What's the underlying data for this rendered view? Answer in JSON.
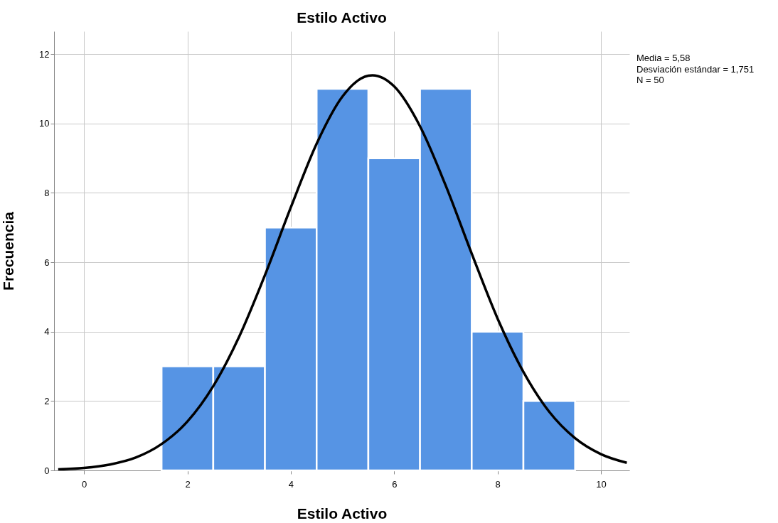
{
  "chart_data": {
    "type": "histogram",
    "title": "Estilo Activo",
    "xlabel": "Estilo Activo",
    "ylabel": "Frecuencia",
    "xlim": [
      -0.58,
      10.55
    ],
    "ylim": [
      0,
      12.66
    ],
    "xticks": [
      0,
      2,
      4,
      6,
      8,
      10
    ],
    "yticks": [
      0,
      2,
      4,
      6,
      8,
      10,
      12
    ],
    "grid": true,
    "annotations": [
      "Media = 5,58",
      "Desviación estándar = 1,751",
      "N = 50"
    ],
    "series": [
      {
        "type": "histogram",
        "color": "#5694e4",
        "bins": [
          1.5,
          2.5,
          3.5,
          4.5,
          5.5,
          6.5,
          7.5,
          8.5,
          9.5
        ],
        "values": [
          3,
          3,
          7,
          11,
          9,
          11,
          4,
          2
        ]
      },
      {
        "type": "line",
        "color": "#000000",
        "x": [
          -0.5,
          0,
          0.5,
          1,
          1.5,
          2,
          2.5,
          3,
          3.5,
          4,
          4.5,
          5,
          5.5,
          5.58,
          6,
          6.5,
          7,
          7.5,
          8,
          8.5,
          9,
          9.5,
          10,
          10.5
        ],
        "values": [
          0.03,
          0.07,
          0.17,
          0.37,
          0.76,
          1.41,
          2.43,
          3.85,
          5.63,
          7.58,
          9.42,
          10.78,
          11.38,
          11.39,
          11.07,
          9.92,
          8.2,
          6.25,
          4.38,
          2.84,
          1.69,
          0.93,
          0.47,
          0.22
        ]
      }
    ]
  }
}
